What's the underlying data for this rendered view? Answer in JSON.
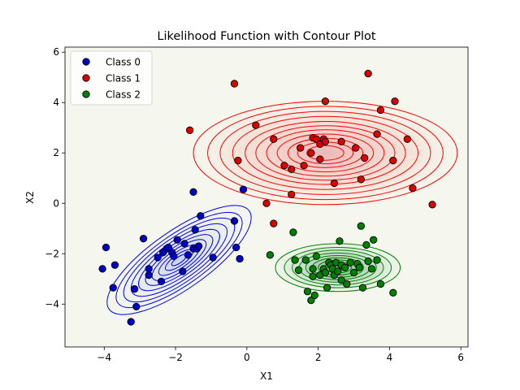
{
  "chart_data": {
    "type": "scatter",
    "title": "Likelihood Function with Contour Plot",
    "xlabel": "X1",
    "ylabel": "X2",
    "xlim": [
      -5.1,
      6.2
    ],
    "ylim": [
      -5.7,
      6.2
    ],
    "xticks": [
      -4,
      -2,
      0,
      2,
      4,
      6
    ],
    "yticks": [
      -4,
      -2,
      0,
      2,
      4,
      6
    ],
    "xtick_labels": [
      "−4",
      "−2",
      "0",
      "2",
      "4",
      "6"
    ],
    "ytick_labels": [
      "−4",
      "−2",
      "0",
      "2",
      "4",
      "6"
    ],
    "grid": false,
    "legend_position": "top-left",
    "background_color": "#f5f7ee",
    "series": [
      {
        "name": "Class 0",
        "color": "#0000cc",
        "contour_color": "#0000ff",
        "contour": {
          "center": [
            -1.9,
            -2.25
          ],
          "rx": [
            2.4,
            2.1,
            1.85,
            1.6,
            1.35,
            1.12,
            0.9,
            0.68,
            0.46,
            0.25
          ],
          "ry": [
            1.15,
            1.0,
            0.88,
            0.76,
            0.64,
            0.53,
            0.43,
            0.32,
            0.22,
            0.12
          ],
          "angle_deg": 35
        },
        "points": [
          [
            -3.95,
            -1.75
          ],
          [
            -4.05,
            -2.6
          ],
          [
            -3.7,
            -2.45
          ],
          [
            -3.75,
            -3.35
          ],
          [
            -3.15,
            -3.4
          ],
          [
            -3.1,
            -4.1
          ],
          [
            -3.25,
            -4.7
          ],
          [
            -2.9,
            -1.4
          ],
          [
            -2.75,
            -2.6
          ],
          [
            -2.75,
            -2.85
          ],
          [
            -2.5,
            -2.15
          ],
          [
            -2.4,
            -3.1
          ],
          [
            -2.35,
            -1.95
          ],
          [
            -2.25,
            -1.8
          ],
          [
            -2.2,
            -1.75
          ],
          [
            -2.1,
            -1.95
          ],
          [
            -2.05,
            -2.1
          ],
          [
            -1.95,
            -1.45
          ],
          [
            -1.8,
            -2.7
          ],
          [
            -1.75,
            -1.6
          ],
          [
            -1.65,
            -2.05
          ],
          [
            -1.5,
            -1.8
          ],
          [
            -1.5,
            0.45
          ],
          [
            -1.45,
            -1.05
          ],
          [
            -1.4,
            -1.8
          ],
          [
            -1.35,
            -1.7
          ],
          [
            -1.3,
            -0.5
          ],
          [
            -0.95,
            -2.15
          ],
          [
            -0.35,
            -0.7
          ],
          [
            -0.3,
            -1.75
          ],
          [
            -0.2,
            -2.2
          ],
          [
            -0.1,
            0.55
          ]
        ]
      },
      {
        "name": "Class 1",
        "color": "#dd0000",
        "contour_color": "#ff0000",
        "contour": {
          "center": [
            2.2,
            2.0
          ],
          "rx": [
            3.7,
            3.3,
            2.95,
            2.6,
            2.25,
            1.95,
            1.65,
            1.35,
            1.05,
            0.78,
            0.52
          ],
          "ry": [
            2.05,
            1.85,
            1.65,
            1.45,
            1.25,
            1.08,
            0.92,
            0.75,
            0.58,
            0.43,
            0.29
          ],
          "angle_deg": 0
        },
        "points": [
          [
            -0.35,
            4.75
          ],
          [
            -1.6,
            2.9
          ],
          [
            -0.25,
            1.7
          ],
          [
            0.25,
            3.1
          ],
          [
            0.55,
            0.0
          ],
          [
            0.75,
            2.55
          ],
          [
            0.75,
            -0.8
          ],
          [
            1.05,
            1.5
          ],
          [
            1.25,
            1.35
          ],
          [
            1.25,
            0.35
          ],
          [
            1.5,
            2.2
          ],
          [
            1.6,
            1.5
          ],
          [
            1.8,
            2.0
          ],
          [
            1.85,
            2.6
          ],
          [
            1.95,
            2.55
          ],
          [
            2.05,
            2.35
          ],
          [
            2.05,
            1.75
          ],
          [
            2.15,
            2.55
          ],
          [
            2.2,
            4.05
          ],
          [
            2.2,
            2.45
          ],
          [
            2.45,
            0.8
          ],
          [
            2.65,
            2.45
          ],
          [
            3.05,
            2.2
          ],
          [
            3.2,
            0.95
          ],
          [
            3.3,
            1.8
          ],
          [
            3.4,
            5.15
          ],
          [
            3.65,
            2.75
          ],
          [
            3.75,
            3.7
          ],
          [
            4.1,
            1.7
          ],
          [
            4.15,
            4.05
          ],
          [
            4.5,
            2.55
          ],
          [
            4.65,
            0.6
          ],
          [
            5.2,
            -0.05
          ]
        ]
      },
      {
        "name": "Class 2",
        "color": "#008000",
        "contour_color": "#008000",
        "contour": {
          "center": [
            2.55,
            -2.55
          ],
          "rx": [
            1.75,
            1.5,
            1.28,
            1.08,
            0.9,
            0.72,
            0.55,
            0.38,
            0.22
          ],
          "ry": [
            0.95,
            0.8,
            0.69,
            0.58,
            0.48,
            0.39,
            0.3,
            0.21,
            0.12
          ],
          "angle_deg": 0
        },
        "points": [
          [
            0.65,
            -2.05
          ],
          [
            1.3,
            -1.15
          ],
          [
            1.35,
            -2.25
          ],
          [
            1.45,
            -2.65
          ],
          [
            1.65,
            -2.25
          ],
          [
            1.7,
            -3.5
          ],
          [
            1.8,
            -3.85
          ],
          [
            1.85,
            -2.6
          ],
          [
            1.85,
            -2.9
          ],
          [
            1.9,
            -3.65
          ],
          [
            1.95,
            -2.1
          ],
          [
            2.05,
            -2.85
          ],
          [
            2.15,
            -2.6
          ],
          [
            2.2,
            -2.75
          ],
          [
            2.25,
            -3.35
          ],
          [
            2.3,
            -2.35
          ],
          [
            2.35,
            -2.45
          ],
          [
            2.4,
            -2.6
          ],
          [
            2.45,
            -2.85
          ],
          [
            2.5,
            -2.35
          ],
          [
            2.55,
            -2.7
          ],
          [
            2.6,
            -1.5
          ],
          [
            2.65,
            -2.45
          ],
          [
            2.65,
            -3.05
          ],
          [
            2.75,
            -2.55
          ],
          [
            2.8,
            -3.2
          ],
          [
            2.9,
            -2.35
          ],
          [
            3.0,
            -2.75
          ],
          [
            3.1,
            -2.4
          ],
          [
            3.15,
            -2.55
          ],
          [
            3.2,
            -0.9
          ],
          [
            3.25,
            -3.35
          ],
          [
            3.35,
            -1.65
          ],
          [
            3.4,
            -2.3
          ],
          [
            3.5,
            -2.6
          ],
          [
            3.55,
            -1.45
          ],
          [
            3.65,
            -2.25
          ],
          [
            3.75,
            -3.2
          ],
          [
            4.1,
            -3.55
          ]
        ]
      }
    ]
  }
}
